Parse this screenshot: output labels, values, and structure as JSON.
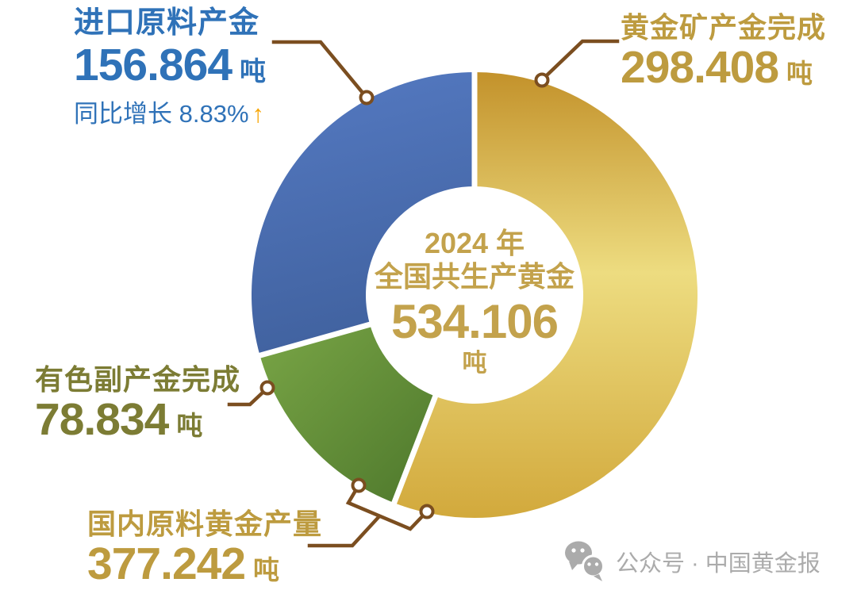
{
  "chart_data": {
    "type": "pie",
    "donut": true,
    "title": "2024 年全国共生产黄金 534.106 吨",
    "total": 534.106,
    "start_angle_deg": 0,
    "direction": "clockwise",
    "legend_position": "callouts",
    "center_label": {
      "line1": "2024 年",
      "line2": "全国共生产黄金",
      "value": 534.106,
      "unit": "吨"
    },
    "series": [
      {
        "key": "mined",
        "label": "黄金矿产金完成",
        "value": 298.408,
        "unit": "吨",
        "color": "gold"
      },
      {
        "key": "byproduct",
        "label": "有色副产金完成",
        "value": 78.834,
        "unit": "吨",
        "color": "green"
      },
      {
        "key": "imported",
        "label": "进口原料产金",
        "value": 156.864,
        "unit": "吨",
        "color": "blue",
        "yoy": "同比增长 8.83%",
        "yoy_arrow": "↑"
      }
    ],
    "callouts": {
      "domestic_total": {
        "label": "国内原料黄金产量",
        "value": 377.242,
        "unit": "吨",
        "covers": [
          "mined",
          "byproduct"
        ]
      }
    }
  },
  "watermark": {
    "text": "公众号 · 中国黄金报"
  },
  "colors": {
    "blue_text": "#2F72B8",
    "gold_text": "#BD9B3F",
    "olive_text": "#7C7C34",
    "center_text": "#C3A24C",
    "arrow_orange": "#F7A503",
    "leader_brown": "#7B4E20",
    "watermark_gray": "#ABABAB",
    "separator_white": "#FFFFFF",
    "slice_gradients": {
      "gold": [
        "#C3922B",
        "#EDDC80",
        "#D2A93C"
      ],
      "green": [
        "#79A546",
        "#4E782C"
      ],
      "blue": [
        "#5479C1",
        "#40619E"
      ]
    }
  }
}
